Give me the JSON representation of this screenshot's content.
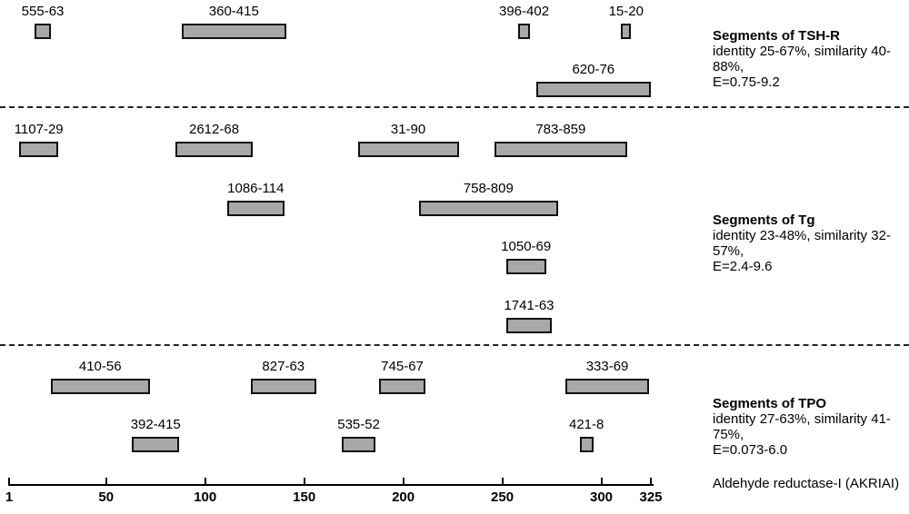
{
  "colors": {
    "background": "#ffffff",
    "segment_fill": "#a8a8a8",
    "segment_border": "#111111",
    "text": "#000000"
  },
  "chart_data": {
    "type": "bar",
    "subtype": "horizontal-interval-map",
    "title": "",
    "xlabel": "Aldehyde reductase-I (AKRIAI)",
    "ylabel": "",
    "xlim": [
      1,
      325
    ],
    "axis_ticks": [
      1,
      50,
      100,
      150,
      200,
      250,
      300,
      325
    ],
    "grid": false,
    "legend_position": "right",
    "groups": [
      {
        "name": "TSH-R",
        "caption": {
          "title": "Segments of TSH-R",
          "line2": "identity 25-67%, similarity 40-88%,",
          "line3": "E=0.75-9.2"
        },
        "segments": [
          {
            "label": "555-63",
            "start": 14,
            "end": 22,
            "row": 0
          },
          {
            "label": "360-415",
            "start": 88,
            "end": 141,
            "row": 0
          },
          {
            "label": "396-402",
            "start": 258,
            "end": 264,
            "row": 0
          },
          {
            "label": "15-20",
            "start": 310,
            "end": 315,
            "row": 0
          },
          {
            "label": "620-76",
            "start": 267,
            "end": 325,
            "row": 1
          }
        ]
      },
      {
        "name": "Tg",
        "caption": {
          "title": "Segments of Tg",
          "line2": "identity 23-48%, similarity 32-57%,",
          "line3": "E=2.4-9.6"
        },
        "segments": [
          {
            "label": "1107-29",
            "start": 6,
            "end": 26,
            "row": 0
          },
          {
            "label": "2612-68",
            "start": 85,
            "end": 124,
            "row": 0
          },
          {
            "label": "31-90",
            "start": 177,
            "end": 228,
            "row": 0
          },
          {
            "label": "783-859",
            "start": 246,
            "end": 313,
            "row": 0
          },
          {
            "label": "1086-114",
            "start": 111,
            "end": 140,
            "row": 1
          },
          {
            "label": "758-809",
            "start": 208,
            "end": 278,
            "row": 1
          },
          {
            "label": "1050-69",
            "start": 252,
            "end": 272,
            "row": 2
          },
          {
            "label": "1741-63",
            "start": 252,
            "end": 275,
            "row": 3
          }
        ]
      },
      {
        "name": "TPO",
        "caption": {
          "title": "Segments of TPO",
          "line2": "identity 27-63%, similarity 41-75%,",
          "line3": "E=0.073-6.0"
        },
        "segments": [
          {
            "label": "410-56",
            "start": 22,
            "end": 72,
            "row": 0
          },
          {
            "label": "827-63",
            "start": 123,
            "end": 156,
            "row": 0
          },
          {
            "label": "745-67",
            "start": 188,
            "end": 211,
            "row": 0
          },
          {
            "label": "333-69",
            "start": 282,
            "end": 324,
            "row": 0
          },
          {
            "label": "392-415",
            "start": 63,
            "end": 87,
            "row": 1
          },
          {
            "label": "535-52",
            "start": 169,
            "end": 186,
            "row": 1
          },
          {
            "label": "421-8",
            "start": 289,
            "end": 296,
            "row": 1
          }
        ]
      }
    ]
  }
}
